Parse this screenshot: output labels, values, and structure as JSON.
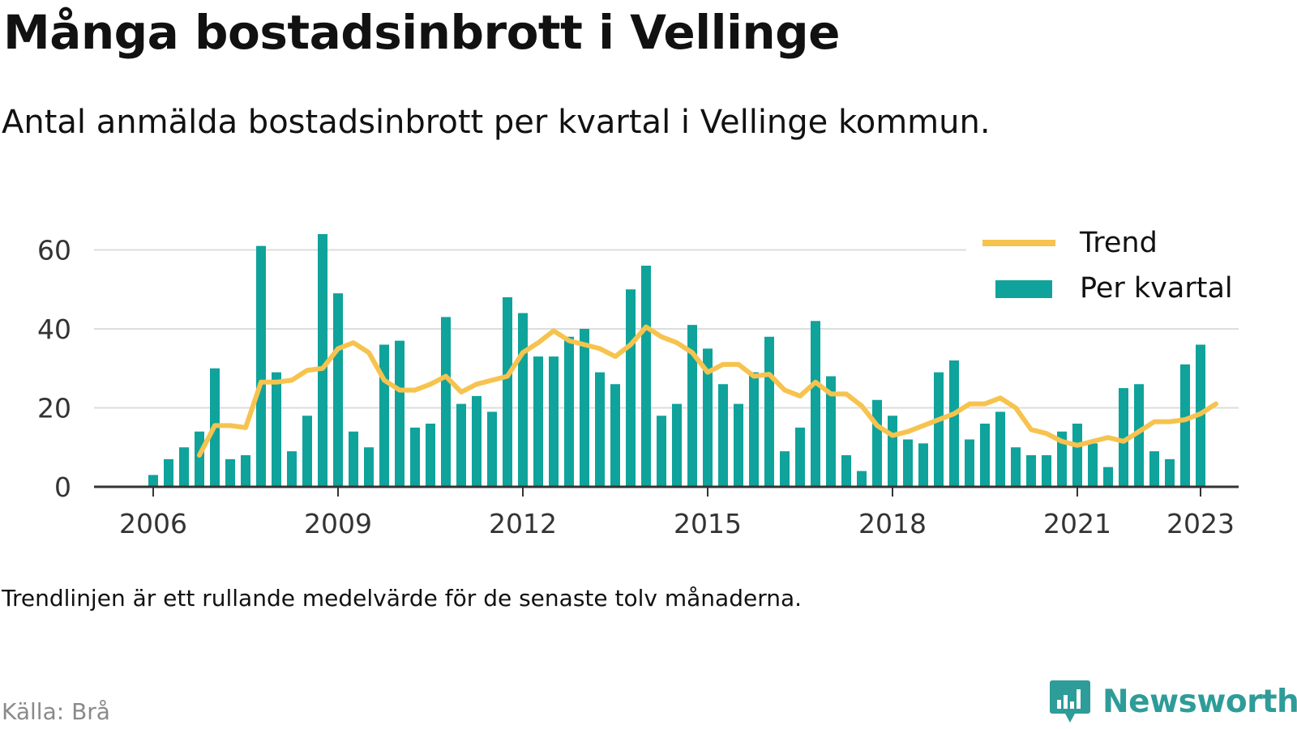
{
  "header": {
    "title": "Många bostadsinbrott i Vellinge",
    "subtitle": "Antal anmälda bostadsinbrott per kvartal i Vellinge kommun."
  },
  "footer": {
    "note": "Trendlinjen är ett rullande medelvärde för de senaste tolv månaderna.",
    "source": "Källa: Brå",
    "brand": "Newsworthy"
  },
  "colors": {
    "bars": "#0fa39b",
    "trend": "#f6c34e",
    "grid": "#dddddd",
    "axis": "#333333",
    "brand": "#2e9c98"
  },
  "chart_data": {
    "type": "bar",
    "x_unit": "quarter",
    "x_ticks": [
      "2006",
      "2009",
      "2012",
      "2015",
      "2018",
      "2021",
      "2023"
    ],
    "y_ticks": [
      0,
      20,
      40,
      60
    ],
    "ylim": [
      0,
      65
    ],
    "grid": true,
    "legend_position": "top-right",
    "series": [
      {
        "name": "Per kvartal",
        "kind": "bar",
        "start": "2006Q1",
        "values": [
          3,
          7,
          10,
          14,
          30,
          7,
          8,
          61,
          29,
          9,
          18,
          64,
          49,
          14,
          10,
          36,
          37,
          15,
          16,
          43,
          21,
          23,
          19,
          48,
          44,
          33,
          33,
          38,
          40,
          29,
          26,
          50,
          56,
          18,
          21,
          41,
          35,
          26,
          21,
          29,
          38,
          9,
          15,
          42,
          28,
          8,
          4,
          22,
          18,
          12,
          11,
          29,
          32,
          12,
          16,
          19,
          10,
          8,
          8,
          14,
          16,
          11,
          5,
          25,
          26,
          9,
          7,
          31,
          36
        ]
      },
      {
        "name": "Trend",
        "kind": "line",
        "start": "2006Q4",
        "values": [
          8,
          15.5,
          15.5,
          15,
          26.5,
          26.5,
          27,
          29.5,
          30,
          35,
          36.5,
          34,
          27,
          24.5,
          24.5,
          26,
          28,
          24,
          26,
          27,
          28,
          34,
          36.5,
          39.5,
          37,
          36,
          35,
          33,
          36,
          40.5,
          38,
          36.5,
          34,
          29,
          31,
          31,
          28,
          28.5,
          24.5,
          23,
          26.5,
          23.5,
          23.5,
          20.5,
          15.5,
          13,
          14,
          15.5,
          17,
          18.5,
          21,
          21,
          22.5,
          20,
          14.5,
          13.5,
          11.5,
          10.5,
          11.5,
          12.5,
          11.5,
          14,
          16.5,
          16.5,
          17,
          18.5,
          21
        ]
      }
    ]
  }
}
